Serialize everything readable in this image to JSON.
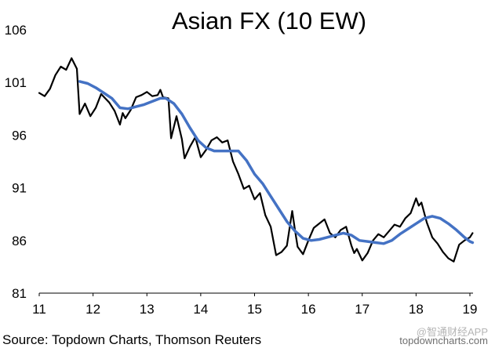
{
  "chart_data": {
    "type": "line",
    "title": "Asian FX (10 EW)",
    "xlabel": "",
    "ylabel": "",
    "xlim": [
      2011,
      2019.1
    ],
    "ylim": [
      81,
      106
    ],
    "x_ticks": [
      "11",
      "12",
      "13",
      "14",
      "15",
      "16",
      "17",
      "18",
      "19"
    ],
    "y_ticks": [
      "106",
      "101",
      "96",
      "91",
      "86",
      "81"
    ],
    "grid": false,
    "legend": "none",
    "series": [
      {
        "color": "#000000",
        "x": [
          2011.0,
          2011.1,
          2011.2,
          2011.3,
          2011.4,
          2011.5,
          2011.6,
          2011.65,
          2011.7,
          2011.75,
          2011.85,
          2011.95,
          2012.05,
          2012.15,
          2012.3,
          2012.4,
          2012.5,
          2012.55,
          2012.6,
          2012.7,
          2012.8,
          2012.9,
          2013.0,
          2013.1,
          2013.2,
          2013.25,
          2013.3,
          2013.4,
          2013.45,
          2013.55,
          2013.65,
          2013.7,
          2013.8,
          2013.9,
          2014.0,
          2014.1,
          2014.2,
          2014.3,
          2014.4,
          2014.5,
          2014.6,
          2014.7,
          2014.8,
          2014.9,
          2015.0,
          2015.1,
          2015.2,
          2015.3,
          2015.4,
          2015.5,
          2015.6,
          2015.7,
          2015.75,
          2015.8,
          2015.9,
          2016.0,
          2016.1,
          2016.2,
          2016.3,
          2016.4,
          2016.5,
          2016.6,
          2016.7,
          2016.8,
          2016.85,
          2016.9,
          2017.0,
          2017.1,
          2017.2,
          2017.3,
          2017.4,
          2017.5,
          2017.6,
          2017.7,
          2017.8,
          2017.9,
          2018.0,
          2018.05,
          2018.1,
          2018.2,
          2018.3,
          2018.4,
          2018.5,
          2018.6,
          2018.7,
          2018.8,
          2018.9,
          2019.0,
          2019.05
        ],
        "values": [
          100.0,
          99.7,
          100.4,
          101.7,
          102.5,
          102.2,
          103.3,
          102.8,
          102.3,
          98.0,
          99.0,
          97.8,
          98.6,
          99.9,
          99.1,
          98.3,
          97.0,
          98.1,
          97.6,
          98.4,
          99.6,
          99.8,
          100.1,
          99.7,
          99.8,
          100.3,
          99.6,
          99.5,
          95.7,
          97.8,
          95.6,
          93.8,
          94.9,
          95.8,
          93.9,
          94.6,
          95.5,
          95.8,
          95.3,
          95.5,
          93.5,
          92.3,
          90.9,
          91.2,
          89.9,
          90.5,
          88.4,
          87.3,
          84.6,
          84.9,
          85.5,
          88.8,
          87.0,
          85.4,
          84.7,
          86.0,
          87.2,
          87.6,
          88.0,
          86.7,
          86.3,
          87.0,
          87.3,
          85.5,
          84.8,
          85.2,
          84.1,
          84.8,
          86.0,
          86.6,
          86.3,
          86.9,
          87.5,
          87.3,
          88.1,
          88.6,
          90.0,
          89.3,
          89.6,
          87.7,
          86.3,
          85.7,
          84.9,
          84.3,
          84.0,
          85.6,
          86.0,
          86.3,
          86.7
        ]
      },
      {
        "color": "#4472c4",
        "x": [
          2011.75,
          2011.9,
          2012.05,
          2012.2,
          2012.35,
          2012.5,
          2012.65,
          2012.8,
          2012.95,
          2013.1,
          2013.25,
          2013.35,
          2013.5,
          2013.65,
          2013.8,
          2013.95,
          2014.1,
          2014.25,
          2014.4,
          2014.55,
          2014.7,
          2014.85,
          2015.0,
          2015.15,
          2015.3,
          2015.45,
          2015.6,
          2015.75,
          2015.9,
          2016.05,
          2016.2,
          2016.35,
          2016.5,
          2016.65,
          2016.8,
          2016.95,
          2017.1,
          2017.25,
          2017.4,
          2017.55,
          2017.7,
          2017.85,
          2018.0,
          2018.15,
          2018.3,
          2018.45,
          2018.6,
          2018.75,
          2018.9,
          2019.0,
          2019.05
        ],
        "values": [
          101.1,
          100.9,
          100.5,
          100.0,
          99.5,
          98.6,
          98.5,
          98.7,
          98.9,
          99.2,
          99.5,
          99.5,
          99.0,
          98.0,
          96.7,
          95.5,
          94.8,
          94.5,
          94.5,
          94.5,
          94.5,
          93.6,
          92.3,
          91.4,
          90.2,
          89.0,
          87.8,
          86.9,
          86.2,
          86.0,
          86.1,
          86.3,
          86.5,
          86.7,
          86.5,
          86.0,
          85.9,
          85.8,
          85.7,
          86.0,
          86.6,
          87.1,
          87.6,
          88.1,
          88.3,
          88.1,
          87.6,
          87.0,
          86.3,
          85.9,
          85.8
        ]
      }
    ],
    "source": "Source: Topdown Charts, Thomson Reuters",
    "watermark": "topdowncharts.com",
    "watermark_overlay": "@智通财经APP"
  }
}
